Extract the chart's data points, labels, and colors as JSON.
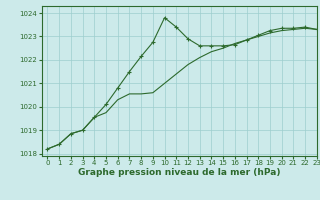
{
  "line1_x": [
    0,
    1,
    2,
    3,
    4,
    5,
    6,
    7,
    8,
    9,
    10,
    11,
    12,
    13,
    14,
    15,
    16,
    17,
    18,
    19,
    20,
    21,
    22,
    23
  ],
  "line1_y": [
    1018.2,
    1018.4,
    1018.85,
    1019.0,
    1019.55,
    1019.75,
    1020.3,
    1020.55,
    1020.55,
    1020.6,
    1021.0,
    1021.4,
    1021.8,
    1022.1,
    1022.35,
    1022.5,
    1022.7,
    1022.85,
    1023.0,
    1023.15,
    1023.25,
    1023.3,
    1023.35,
    1023.3
  ],
  "line2_x": [
    0,
    1,
    2,
    3,
    4,
    5,
    6,
    7,
    8,
    9,
    10,
    11,
    12,
    13,
    14,
    15,
    16,
    17,
    18,
    19,
    20,
    21,
    22,
    23
  ],
  "line2_y": [
    1018.2,
    1018.4,
    1018.85,
    1019.0,
    1019.55,
    1020.1,
    1020.8,
    1021.5,
    1022.15,
    1022.75,
    1023.8,
    1023.4,
    1022.9,
    1022.6,
    1022.6,
    1022.6,
    1022.65,
    1022.85,
    1023.05,
    1023.25,
    1023.35,
    1023.35,
    1023.4,
    1023.3
  ],
  "line_color": "#2d6a2d",
  "bg_color": "#cceaea",
  "grid_color": "#9ecece",
  "xlabel": "Graphe pression niveau de la mer (hPa)",
  "ylim": [
    1017.9,
    1024.3
  ],
  "xlim": [
    -0.5,
    23
  ],
  "yticks": [
    1018,
    1019,
    1020,
    1021,
    1022,
    1023,
    1024
  ],
  "xticks": [
    0,
    1,
    2,
    3,
    4,
    5,
    6,
    7,
    8,
    9,
    10,
    11,
    12,
    13,
    14,
    15,
    16,
    17,
    18,
    19,
    20,
    21,
    22,
    23
  ]
}
